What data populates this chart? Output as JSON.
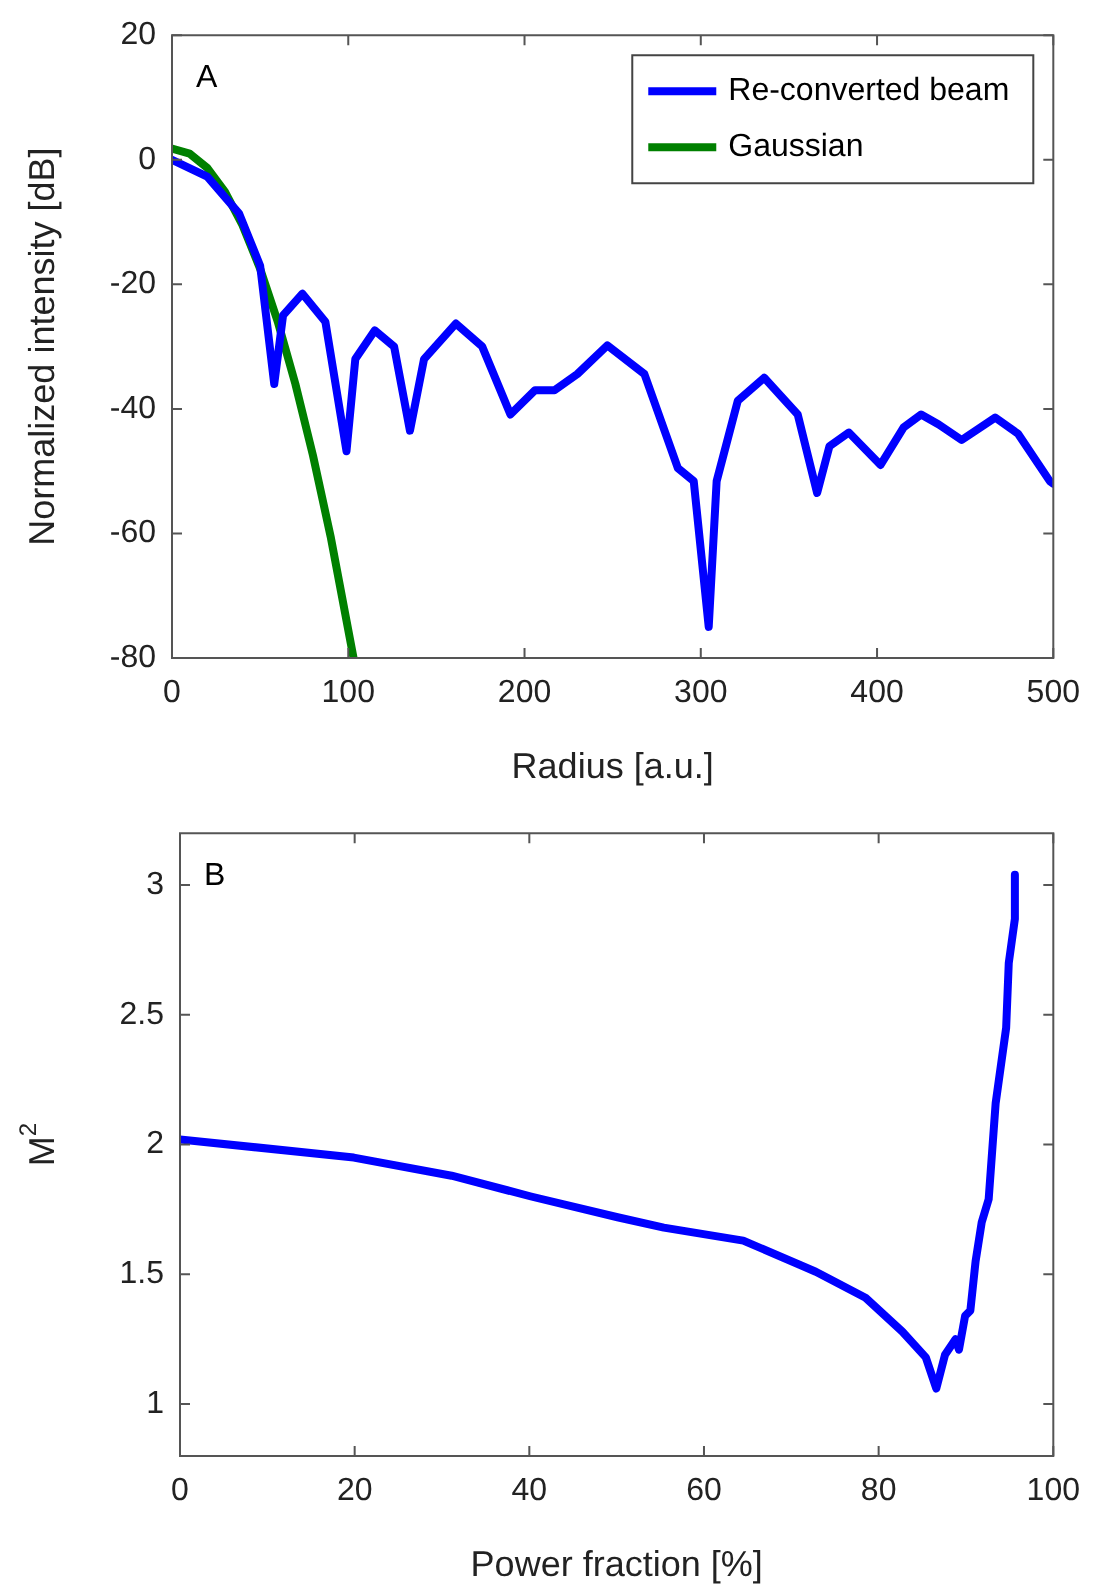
{
  "chart_data": [
    {
      "type": "line",
      "xlabel": "Radius [a.u.]",
      "ylabel": "Normalized intensity [dB]",
      "annotations": [
        "A"
      ],
      "xlim": [
        0,
        500
      ],
      "xticks": [
        0,
        100,
        200,
        300,
        400,
        500
      ],
      "ylim": [
        -80,
        20
      ],
      "yticks": [
        -80,
        -60,
        -40,
        -20,
        0,
        20
      ],
      "grid": false,
      "legend": "top right",
      "marker": "none",
      "line_style": "solid",
      "series": [
        {
          "name": "Re-converted beam",
          "color": "#0000ff",
          "x": [
            0,
            20,
            38,
            50,
            58,
            63,
            74,
            87,
            99,
            104,
            115,
            126,
            135,
            143,
            161,
            176,
            192,
            206,
            217,
            230,
            247,
            268,
            287,
            296,
            304.5,
            309,
            321,
            336,
            355,
            366,
            373,
            384,
            402,
            415,
            425,
            435,
            448,
            467,
            480,
            498,
            500
          ],
          "values": [
            0,
            -2.7,
            -8.6,
            -17,
            -36,
            -25,
            -21.5,
            -26,
            -46.8,
            -32,
            -27.4,
            -30,
            -43.5,
            -32,
            -26.3,
            -30,
            -40.9,
            -37,
            -37,
            -34.4,
            -29.8,
            -34.4,
            -49.5,
            -51.6,
            -75,
            -51.6,
            -38.7,
            -35,
            -40.9,
            -53.5,
            -46,
            -43.8,
            -49,
            -43,
            -40.9,
            -42.5,
            -45,
            -41.4,
            -44,
            -51.6,
            -52
          ]
        },
        {
          "name": "Gaussian",
          "color": "#008000",
          "x": [
            0,
            10,
            20,
            30,
            40,
            50,
            60,
            70,
            80,
            90,
            103
          ],
          "values": [
            1.8,
            1,
            -1.3,
            -5.1,
            -10.5,
            -17.5,
            -26,
            -36,
            -47.5,
            -60.5,
            -80
          ]
        }
      ]
    },
    {
      "type": "line",
      "xlabel": "Power fraction [%]",
      "ylabel": "M$^{2}$",
      "annotations": [
        "B"
      ],
      "xlim": [
        0,
        100
      ],
      "xticks": [
        0,
        20,
        40,
        60,
        80,
        100
      ],
      "ylim": [
        0.8,
        3.2
      ],
      "yticks": [
        1,
        1.5,
        2,
        2.5,
        3
      ],
      "grid": false,
      "marker": "none",
      "line_style": "solid",
      "series": [
        {
          "color": "#0000ff",
          "x": [
            0,
            19.9,
            31.1,
            40.2,
            50.1,
            55.4,
            64.5,
            72.8,
            78.5,
            82.7,
            85.4,
            86.6,
            87.6,
            88.8,
            89.2,
            89.9,
            90.5,
            91.1,
            91.8,
            92.6,
            93.4,
            94.6,
            94.9,
            95.6,
            95.6
          ],
          "values": [
            2.02,
            1.95,
            1.88,
            1.8,
            1.72,
            1.68,
            1.63,
            1.51,
            1.41,
            1.28,
            1.18,
            1.06,
            1.19,
            1.25,
            1.21,
            1.34,
            1.36,
            1.55,
            1.7,
            1.79,
            2.16,
            2.45,
            2.7,
            2.87,
            3.04
          ]
        }
      ]
    }
  ]
}
